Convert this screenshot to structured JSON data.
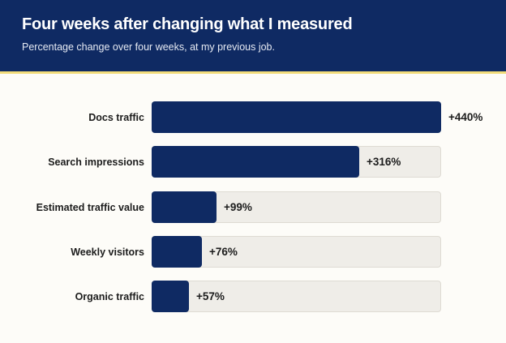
{
  "header": {
    "title": "Four weeks after changing what I measured",
    "subtitle": "Percentage change over four weeks, at my previous job."
  },
  "colors": {
    "header_bg": "#0f2a63",
    "accent_line": "#f2dc7a",
    "bar": "#0f2a63",
    "track": "#efede8",
    "page_bg": "#fdfcf8"
  },
  "chart_data": {
    "type": "bar",
    "orientation": "horizontal",
    "title": "Four weeks after changing what I measured",
    "subtitle": "Percentage change over four weeks, at my previous job.",
    "categories": [
      "Docs traffic",
      "Search impressions",
      "Estimated traffic value",
      "Weekly visitors",
      "Organic traffic"
    ],
    "values": [
      440,
      316,
      99,
      76,
      57
    ],
    "value_labels": [
      "+440%",
      "+316%",
      "+99%",
      "+76%",
      "+57%"
    ],
    "unit": "%",
    "xlim": [
      0,
      440
    ],
    "grid": false,
    "legend": "none"
  }
}
